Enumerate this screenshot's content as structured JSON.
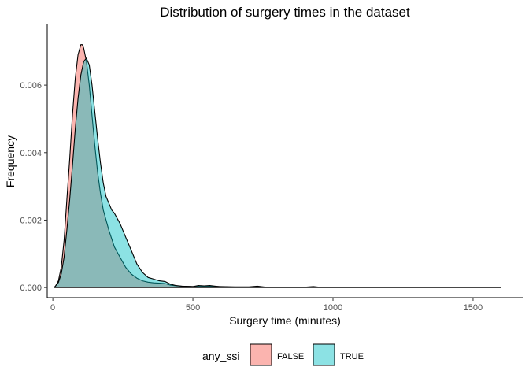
{
  "chart_data": {
    "type": "area",
    "title": "Distribution of surgery times in the dataset",
    "xlabel": "Surgery time (minutes)",
    "ylabel": "Frequency",
    "xlim": [
      -20,
      1680
    ],
    "ylim": [
      -0.0003,
      0.0078
    ],
    "x_ticks": [
      0,
      500,
      1000,
      1500
    ],
    "x_tick_labels": [
      "0",
      "500",
      "1000",
      "1500"
    ],
    "y_ticks": [
      0,
      0.002,
      0.004,
      0.006
    ],
    "y_tick_labels": [
      "0.000",
      "0.002",
      "0.004",
      "0.006"
    ],
    "grid": false,
    "legend": {
      "title": "any_ssi",
      "position": "bottom",
      "entries": [
        {
          "label": "FALSE",
          "color": "#F8766D"
        },
        {
          "label": "TRUE",
          "color": "#00BFC4"
        }
      ]
    },
    "series": [
      {
        "name": "FALSE",
        "color": "#F8766D",
        "points": [
          [
            5,
            0
          ],
          [
            10,
            5e-05
          ],
          [
            20,
            0.0002
          ],
          [
            30,
            0.0006
          ],
          [
            40,
            0.0014
          ],
          [
            50,
            0.0026
          ],
          [
            60,
            0.0038
          ],
          [
            70,
            0.0051
          ],
          [
            80,
            0.0062
          ],
          [
            90,
            0.0069
          ],
          [
            100,
            0.0072
          ],
          [
            105,
            0.0072
          ],
          [
            110,
            0.0071
          ],
          [
            120,
            0.0067
          ],
          [
            130,
            0.006
          ],
          [
            140,
            0.0051
          ],
          [
            150,
            0.0042
          ],
          [
            160,
            0.0034
          ],
          [
            170,
            0.0028
          ],
          [
            180,
            0.0023
          ],
          [
            200,
            0.0017
          ],
          [
            220,
            0.0012
          ],
          [
            240,
            0.0009
          ],
          [
            260,
            0.0006
          ],
          [
            280,
            0.0004
          ],
          [
            300,
            0.00028
          ],
          [
            320,
            0.0002
          ],
          [
            340,
            0.00016
          ],
          [
            360,
            0.00014
          ],
          [
            380,
            0.00013
          ],
          [
            400,
            0.00012
          ],
          [
            420,
            7e-05
          ],
          [
            440,
            5e-05
          ],
          [
            460,
            4e-05
          ],
          [
            500,
            3e-05
          ],
          [
            550,
            4e-05
          ],
          [
            600,
            3e-05
          ],
          [
            650,
            2e-05
          ],
          [
            700,
            2e-05
          ],
          [
            730,
            4e-05
          ],
          [
            760,
            1e-05
          ],
          [
            900,
            1e-05
          ],
          [
            930,
            3e-05
          ],
          [
            960,
            0
          ],
          [
            1000,
            0
          ],
          [
            1200,
            0
          ],
          [
            1400,
            0
          ],
          [
            1600,
            0
          ]
        ]
      },
      {
        "name": "TRUE",
        "color": "#00BFC4",
        "points": [
          [
            5,
            0
          ],
          [
            10,
            5e-05
          ],
          [
            20,
            0.00015
          ],
          [
            30,
            0.0004
          ],
          [
            40,
            0.0009
          ],
          [
            50,
            0.0017
          ],
          [
            60,
            0.0026
          ],
          [
            70,
            0.0036
          ],
          [
            80,
            0.0047
          ],
          [
            90,
            0.0056
          ],
          [
            100,
            0.0063
          ],
          [
            110,
            0.0067
          ],
          [
            120,
            0.0068
          ],
          [
            130,
            0.0066
          ],
          [
            140,
            0.006
          ],
          [
            150,
            0.0052
          ],
          [
            160,
            0.0044
          ],
          [
            170,
            0.0037
          ],
          [
            180,
            0.0031
          ],
          [
            190,
            0.0027
          ],
          [
            200,
            0.0025
          ],
          [
            210,
            0.0023
          ],
          [
            220,
            0.0022
          ],
          [
            240,
            0.0019
          ],
          [
            260,
            0.0015
          ],
          [
            280,
            0.0011
          ],
          [
            300,
            0.0007
          ],
          [
            320,
            0.00045
          ],
          [
            340,
            0.0003
          ],
          [
            360,
            0.00025
          ],
          [
            380,
            0.0002
          ],
          [
            400,
            0.00018
          ],
          [
            420,
            0.0001
          ],
          [
            440,
            6e-05
          ],
          [
            460,
            4e-05
          ],
          [
            500,
            3e-05
          ],
          [
            520,
            6e-05
          ],
          [
            540,
            5e-05
          ],
          [
            560,
            6e-05
          ],
          [
            580,
            4e-05
          ],
          [
            600,
            2e-05
          ],
          [
            640,
            1e-05
          ],
          [
            700,
            1e-05
          ],
          [
            900,
            0
          ],
          [
            1000,
            0
          ],
          [
            1200,
            0
          ],
          [
            1400,
            0
          ],
          [
            1600,
            0
          ]
        ]
      }
    ]
  }
}
